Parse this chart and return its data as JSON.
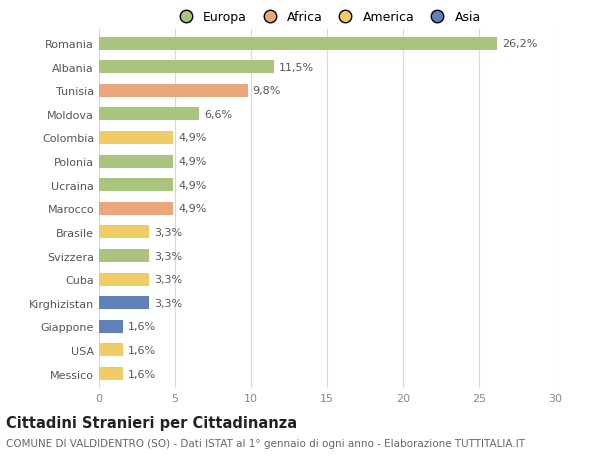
{
  "countries": [
    "Romania",
    "Albania",
    "Tunisia",
    "Moldova",
    "Colombia",
    "Polonia",
    "Ucraina",
    "Marocco",
    "Brasile",
    "Svizzera",
    "Cuba",
    "Kirghizistan",
    "Giappone",
    "USA",
    "Messico"
  ],
  "values": [
    26.2,
    11.5,
    9.8,
    6.6,
    4.9,
    4.9,
    4.9,
    4.9,
    3.3,
    3.3,
    3.3,
    3.3,
    1.6,
    1.6,
    1.6
  ],
  "labels": [
    "26,2%",
    "11,5%",
    "9,8%",
    "6,6%",
    "4,9%",
    "4,9%",
    "4,9%",
    "4,9%",
    "3,3%",
    "3,3%",
    "3,3%",
    "3,3%",
    "1,6%",
    "1,6%",
    "1,6%"
  ],
  "colors": [
    "#a8c47e",
    "#a8c47e",
    "#e8a87c",
    "#a8c47e",
    "#f0cc68",
    "#a8c47e",
    "#a8c47e",
    "#e8a87c",
    "#f0cc68",
    "#a8c47e",
    "#f0cc68",
    "#6080b8",
    "#6080b8",
    "#f0cc68",
    "#f0cc68"
  ],
  "continent_labels": [
    "Europa",
    "Africa",
    "America",
    "Asia"
  ],
  "continent_colors": [
    "#a8c47e",
    "#e8a87c",
    "#f0cc68",
    "#6080b8"
  ],
  "title": "Cittadini Stranieri per Cittadinanza",
  "subtitle": "COMUNE DI VALDIDENTRO (SO) - Dati ISTAT al 1° gennaio di ogni anno - Elaborazione TUTTITALIA.IT",
  "xlim": [
    0,
    30
  ],
  "xticks": [
    0,
    5,
    10,
    15,
    20,
    25,
    30
  ],
  "background_color": "#ffffff",
  "grid_color": "#d8d8d8",
  "bar_height": 0.55,
  "label_fontsize": 8,
  "tick_fontsize": 8,
  "title_fontsize": 10.5,
  "subtitle_fontsize": 7.5
}
